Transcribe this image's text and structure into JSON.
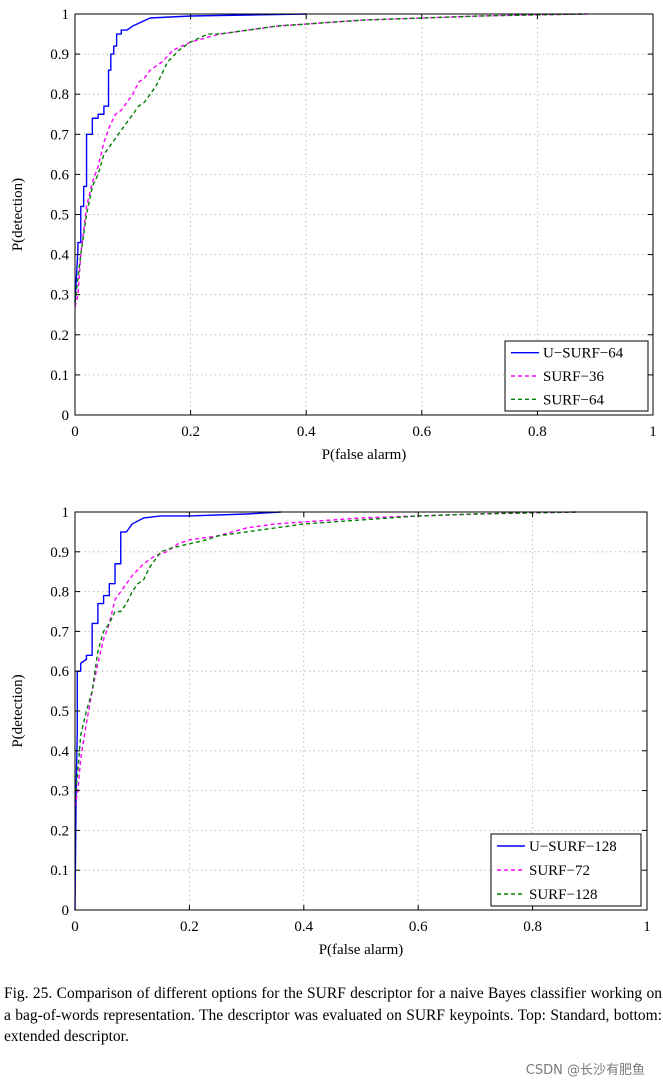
{
  "chart_data": [
    {
      "type": "line",
      "title": "",
      "xlabel": "P(false alarm)",
      "ylabel": "P(detection)",
      "xlim": [
        0,
        1
      ],
      "ylim": [
        0,
        1
      ],
      "xticks": [
        "0",
        "0.2",
        "0.4",
        "0.6",
        "0.8",
        "1"
      ],
      "yticks": [
        "0",
        "0.1",
        "0.2",
        "0.3",
        "0.4",
        "0.5",
        "0.6",
        "0.7",
        "0.8",
        "0.9",
        "1"
      ],
      "grid": true,
      "legend_position": "bottom-right",
      "series": [
        {
          "name": "U−SURF−64",
          "color": "#0000ff",
          "style": "solid",
          "x": [
            0,
            0.005,
            0.005,
            0.01,
            0.01,
            0.015,
            0.015,
            0.02,
            0.02,
            0.03,
            0.03,
            0.04,
            0.04,
            0.05,
            0.05,
            0.058,
            0.058,
            0.062,
            0.062,
            0.067,
            0.067,
            0.072,
            0.072,
            0.08,
            0.08,
            0.09,
            0.1,
            0.13,
            0.2,
            0.4
          ],
          "y": [
            0.28,
            0.41,
            0.43,
            0.43,
            0.52,
            0.52,
            0.57,
            0.57,
            0.7,
            0.7,
            0.74,
            0.74,
            0.75,
            0.75,
            0.77,
            0.77,
            0.86,
            0.86,
            0.9,
            0.9,
            0.92,
            0.92,
            0.95,
            0.95,
            0.96,
            0.96,
            0.97,
            0.99,
            0.995,
            1.0
          ]
        },
        {
          "name": "SURF−36",
          "color": "#ff00ff",
          "style": "dashed",
          "x": [
            0,
            0.005,
            0.01,
            0.02,
            0.03,
            0.04,
            0.05,
            0.06,
            0.07,
            0.08,
            0.09,
            0.1,
            0.11,
            0.12,
            0.13,
            0.15,
            0.17,
            0.2,
            0.25,
            0.3,
            0.35,
            0.4,
            0.5,
            0.6,
            0.7,
            0.8,
            0.89
          ],
          "y": [
            0.27,
            0.3,
            0.4,
            0.52,
            0.58,
            0.62,
            0.68,
            0.72,
            0.75,
            0.76,
            0.78,
            0.8,
            0.83,
            0.84,
            0.86,
            0.88,
            0.91,
            0.93,
            0.95,
            0.96,
            0.97,
            0.975,
            0.985,
            0.99,
            0.995,
            0.998,
            1.0
          ]
        },
        {
          "name": "SURF−64",
          "color": "#008000",
          "style": "dashed",
          "x": [
            0,
            0.01,
            0.02,
            0.03,
            0.04,
            0.05,
            0.06,
            0.07,
            0.08,
            0.09,
            0.1,
            0.11,
            0.12,
            0.13,
            0.14,
            0.15,
            0.16,
            0.18,
            0.2,
            0.23,
            0.25,
            0.3,
            0.35,
            0.4,
            0.45,
            0.5,
            0.6,
            0.7,
            0.8,
            0.88
          ],
          "y": [
            0.28,
            0.4,
            0.5,
            0.57,
            0.6,
            0.65,
            0.67,
            0.69,
            0.71,
            0.73,
            0.75,
            0.77,
            0.78,
            0.8,
            0.82,
            0.85,
            0.88,
            0.91,
            0.93,
            0.95,
            0.95,
            0.96,
            0.97,
            0.975,
            0.98,
            0.985,
            0.99,
            0.995,
            0.998,
            1.0
          ]
        }
      ]
    },
    {
      "type": "line",
      "title": "",
      "xlabel": "P(false alarm)",
      "ylabel": "P(detection)",
      "xlim": [
        0,
        1
      ],
      "ylim": [
        0,
        1
      ],
      "xticks": [
        "0",
        "0.2",
        "0.4",
        "0.6",
        "0.8",
        "1"
      ],
      "yticks": [
        "0",
        "0.1",
        "0.2",
        "0.3",
        "0.4",
        "0.5",
        "0.6",
        "0.7",
        "0.8",
        "0.9",
        "1"
      ],
      "grid": true,
      "legend_position": "bottom-right",
      "series": [
        {
          "name": "U−SURF−128",
          "color": "#0000ff",
          "style": "solid",
          "x": [
            0,
            0.002,
            0.004,
            0.004,
            0.01,
            0.01,
            0.02,
            0.02,
            0.03,
            0.03,
            0.04,
            0.04,
            0.05,
            0.05,
            0.06,
            0.06,
            0.07,
            0.07,
            0.08,
            0.08,
            0.09,
            0.1,
            0.12,
            0.15,
            0.2,
            0.3,
            0.36
          ],
          "y": [
            0.0,
            0.3,
            0.45,
            0.6,
            0.6,
            0.62,
            0.63,
            0.64,
            0.64,
            0.72,
            0.72,
            0.77,
            0.77,
            0.79,
            0.79,
            0.82,
            0.82,
            0.87,
            0.87,
            0.95,
            0.95,
            0.97,
            0.985,
            0.99,
            0.99,
            0.995,
            1.0
          ]
        },
        {
          "name": "SURF−72",
          "color": "#ff00ff",
          "style": "dashed",
          "x": [
            0,
            0.005,
            0.01,
            0.02,
            0.03,
            0.04,
            0.05,
            0.06,
            0.07,
            0.08,
            0.09,
            0.1,
            0.12,
            0.14,
            0.16,
            0.18,
            0.2,
            0.25,
            0.3,
            0.35,
            0.4,
            0.45,
            0.5,
            0.6,
            0.7,
            0.8,
            0.88
          ],
          "y": [
            0.26,
            0.3,
            0.38,
            0.47,
            0.55,
            0.62,
            0.68,
            0.72,
            0.78,
            0.8,
            0.82,
            0.84,
            0.87,
            0.89,
            0.9,
            0.92,
            0.93,
            0.94,
            0.96,
            0.97,
            0.975,
            0.98,
            0.985,
            0.99,
            0.995,
            0.998,
            1.0
          ]
        },
        {
          "name": "SURF−128",
          "color": "#008000",
          "style": "dashed",
          "x": [
            0,
            0.005,
            0.01,
            0.02,
            0.03,
            0.04,
            0.05,
            0.06,
            0.07,
            0.08,
            0.09,
            0.1,
            0.11,
            0.12,
            0.13,
            0.14,
            0.15,
            0.17,
            0.2,
            0.23,
            0.25,
            0.3,
            0.35,
            0.4,
            0.5,
            0.6,
            0.7,
            0.8,
            0.88
          ],
          "y": [
            0.28,
            0.35,
            0.44,
            0.5,
            0.55,
            0.65,
            0.7,
            0.72,
            0.75,
            0.75,
            0.77,
            0.8,
            0.82,
            0.83,
            0.86,
            0.88,
            0.9,
            0.91,
            0.92,
            0.93,
            0.94,
            0.95,
            0.96,
            0.97,
            0.98,
            0.99,
            0.995,
            0.998,
            1.0
          ]
        }
      ]
    }
  ],
  "caption": "Fig. 25. Comparison of different options for the SURF descriptor for a naive Bayes classifier working on a bag-of-words representation. The descriptor was evaluated on SURF keypoints. Top: Standard, bottom: extended descriptor.",
  "watermark": "CSDN @长沙有肥鱼"
}
